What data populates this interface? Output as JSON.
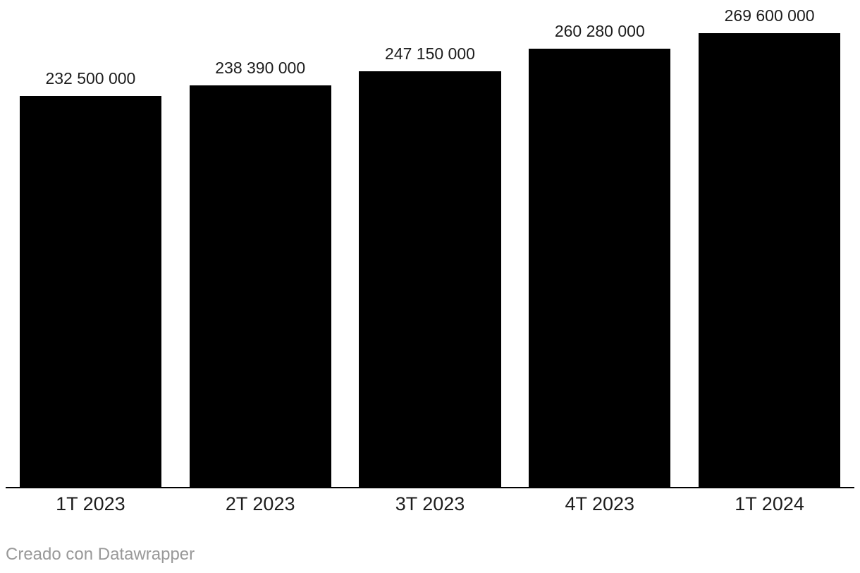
{
  "chart_data": {
    "type": "bar",
    "categories": [
      "1T 2023",
      "2T 2023",
      "3T 2023",
      "4T 2023",
      "1T 2024"
    ],
    "values": [
      232500000,
      238390000,
      247150000,
      260280000,
      269600000
    ],
    "value_labels": [
      "232 500 000",
      "238 390 000",
      "247 150 000",
      "260 280 000",
      "269 600 000"
    ],
    "title": "",
    "xlabel": "",
    "ylabel": "",
    "ylim": [
      0,
      269600000
    ],
    "bar_color": "#000000",
    "value_label_color": "#1d1d1d",
    "tick_label_color": "#1d1d1d",
    "axis_line_color": "#000000",
    "grid": false,
    "legend": false,
    "orientation": "vertical"
  },
  "footer": {
    "credit": "Creado con Datawrapper",
    "color": "#999999"
  }
}
